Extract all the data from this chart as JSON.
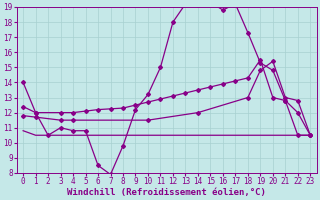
{
  "xlabel": "Windchill (Refroidissement éolien,°C)",
  "bg_color": "#c5e8e8",
  "line_color": "#880088",
  "grid_color": "#a8d0d0",
  "xlim": [
    -0.5,
    23.5
  ],
  "ylim": [
    8,
    19
  ],
  "xticks": [
    0,
    1,
    2,
    3,
    4,
    5,
    6,
    7,
    8,
    9,
    10,
    11,
    12,
    13,
    14,
    15,
    16,
    17,
    18,
    19,
    20,
    21,
    22,
    23
  ],
  "yticks": [
    8,
    9,
    10,
    11,
    12,
    13,
    14,
    15,
    16,
    17,
    18,
    19
  ],
  "line1_x": [
    0,
    1,
    2,
    3,
    4,
    5,
    6,
    7,
    8,
    9,
    10,
    11,
    12,
    13,
    14,
    15,
    16,
    17,
    18,
    19,
    20,
    21,
    22,
    23
  ],
  "line1_y": [
    14,
    12,
    10.5,
    11,
    10.8,
    10.8,
    8.5,
    7.9,
    9.8,
    12.2,
    13.2,
    15.0,
    18.0,
    19.2,
    19.1,
    19.3,
    18.8,
    19.2,
    17.3,
    15.3,
    14.8,
    12.8,
    12.0,
    10.5
  ],
  "line2_x": [
    0,
    1,
    3,
    4,
    5,
    6,
    7,
    8,
    9,
    10,
    11,
    12,
    13,
    14,
    15,
    16,
    17,
    18,
    19,
    20,
    21,
    22,
    23
  ],
  "line2_y": [
    12.4,
    12.0,
    12.0,
    12.0,
    12.1,
    12.2,
    12.25,
    12.3,
    12.5,
    12.7,
    12.9,
    13.1,
    13.3,
    13.5,
    13.7,
    13.9,
    14.1,
    14.3,
    15.5,
    13.0,
    12.8,
    10.5,
    10.5
  ],
  "line3_x": [
    0,
    1,
    3,
    4,
    10,
    14,
    18,
    19,
    20,
    21,
    22,
    23
  ],
  "line3_y": [
    11.8,
    11.7,
    11.5,
    11.5,
    11.5,
    12.0,
    13.0,
    14.8,
    15.4,
    13.0,
    12.8,
    10.5
  ],
  "line4_x": [
    0,
    1,
    2,
    3,
    4,
    5,
    6,
    7,
    8,
    9,
    10,
    11,
    12,
    13,
    14,
    15,
    16,
    17,
    18,
    19,
    20,
    21,
    22,
    23
  ],
  "line4_y": [
    10.8,
    10.5,
    10.5,
    10.5,
    10.5,
    10.5,
    10.5,
    10.5,
    10.5,
    10.5,
    10.5,
    10.5,
    10.5,
    10.5,
    10.5,
    10.5,
    10.5,
    10.5,
    10.5,
    10.5,
    10.5,
    10.5,
    10.5,
    10.5
  ],
  "font_size": 6.5,
  "tick_font_size": 5.5,
  "marker": "D",
  "marker_size": 2.0,
  "line_width": 0.9
}
